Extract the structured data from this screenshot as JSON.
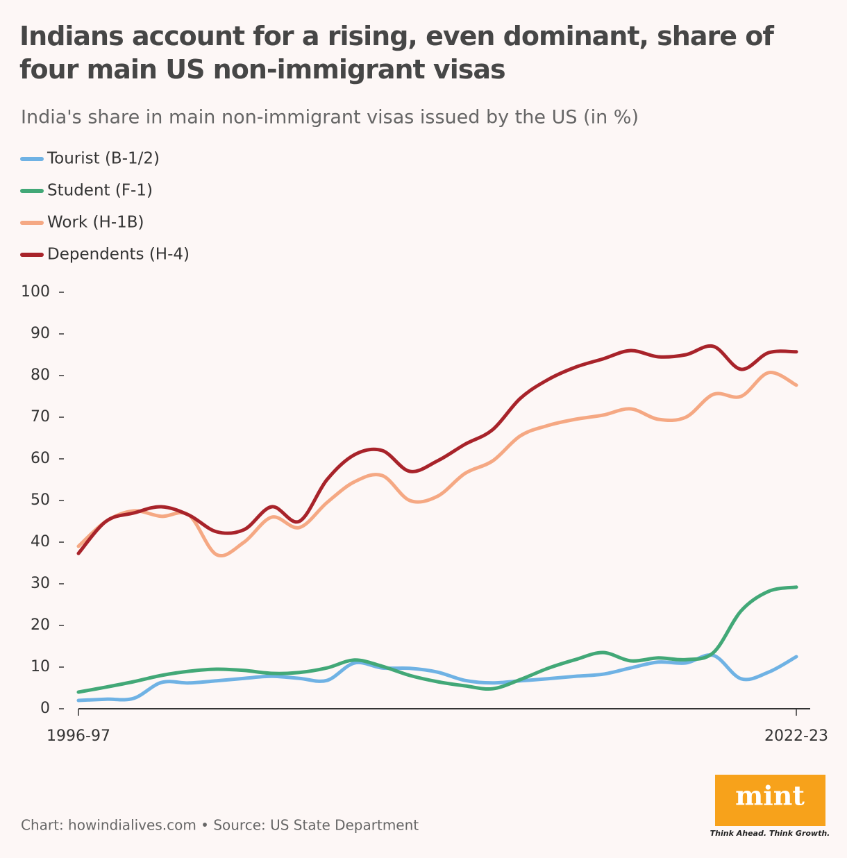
{
  "chart_data": {
    "type": "line",
    "title": "Indians account for a rising, even dominant, share of four main US non-immigrant visas",
    "subtitle": "India's share in main non-immigrant visas issued by the US (in %)",
    "categories": [
      "1996-97",
      null,
      null,
      null,
      null,
      null,
      null,
      null,
      null,
      null,
      null,
      null,
      null,
      null,
      null,
      null,
      null,
      null,
      null,
      null,
      null,
      null,
      null,
      null,
      null,
      null,
      "2022-23"
    ],
    "series": [
      {
        "name": "Tourist (B-1/2)",
        "color": "#6fb2e4",
        "values": [
          2,
          2.3,
          2.5,
          6.3,
          6.2,
          6.7,
          7.3,
          7.8,
          7.3,
          6.8,
          11,
          9.8,
          9.7,
          8.8,
          6.8,
          6.2,
          6.7,
          7.2,
          7.8,
          8.3,
          9.8,
          11.2,
          11,
          12.8,
          7.2,
          8.8,
          12.5
        ]
      },
      {
        "name": "Student (F-1)",
        "color": "#42a877",
        "values": [
          4,
          5.2,
          6.5,
          8,
          9,
          9.5,
          9.2,
          8.5,
          8.7,
          9.8,
          11.7,
          10.2,
          8,
          6.5,
          5.5,
          4.8,
          7,
          9.7,
          11.8,
          13.5,
          11.5,
          12.2,
          11.8,
          13.5,
          23.5,
          28.2,
          29.2
        ]
      },
      {
        "name": "Work (H-1B)",
        "color": "#f5a883",
        "values": [
          39,
          45,
          47.5,
          46.2,
          46.5,
          37,
          40,
          46,
          43.5,
          49.5,
          54.5,
          56,
          50,
          51,
          56.5,
          59.5,
          65.5,
          68,
          69.5,
          70.5,
          72,
          69.5,
          70,
          75.5,
          75,
          80.7,
          77.7
        ]
      },
      {
        "name": "Dependents (H-4)",
        "color": "#a8232a",
        "values": [
          37.3,
          45,
          47,
          48.5,
          46.5,
          42.5,
          43,
          48.5,
          45,
          55,
          61,
          62,
          57,
          59.5,
          63.5,
          67,
          74.5,
          79,
          82,
          84,
          86,
          84.5,
          85,
          87,
          81.5,
          85.5,
          85.7
        ]
      }
    ],
    "ylim": [
      0,
      100
    ],
    "yticks": [
      0,
      10,
      20,
      30,
      40,
      50,
      60,
      70,
      80,
      90,
      100
    ],
    "grid": false,
    "source": "Chart: howindialives.com • Source: US State Department",
    "logo": "mint",
    "tagline": "Think Ahead. Think Growth."
  }
}
